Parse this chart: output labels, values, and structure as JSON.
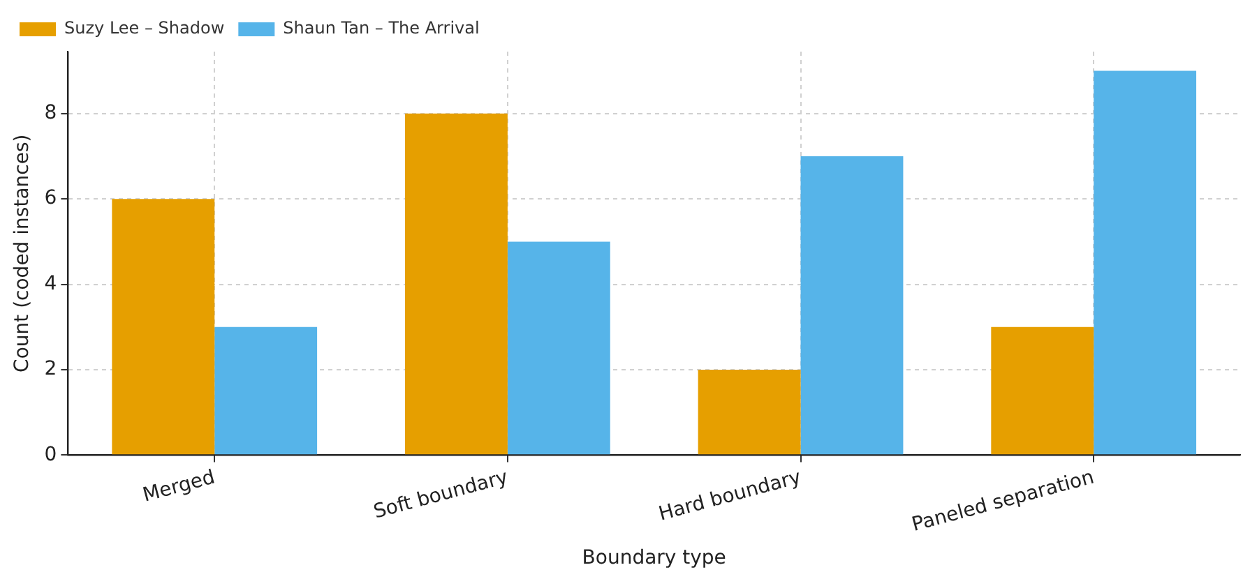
{
  "chart_data": {
    "type": "bar",
    "xlabel": "Boundary type",
    "ylabel": "Count (coded instances)",
    "categories": [
      "Merged",
      "Soft boundary",
      "Hard boundary",
      "Paneled separation"
    ],
    "series": [
      {
        "name": "Suzy Lee – Shadow",
        "color": "#e69f00",
        "values": [
          6,
          8,
          2,
          3
        ]
      },
      {
        "name": "Shaun Tan – The Arrival",
        "color": "#56b4e9",
        "values": [
          3,
          5,
          7,
          9
        ]
      }
    ],
    "ylim": [
      0,
      9.45
    ],
    "yticks": [
      0,
      2,
      4,
      6,
      8
    ],
    "grid": true,
    "legend": "top left"
  }
}
